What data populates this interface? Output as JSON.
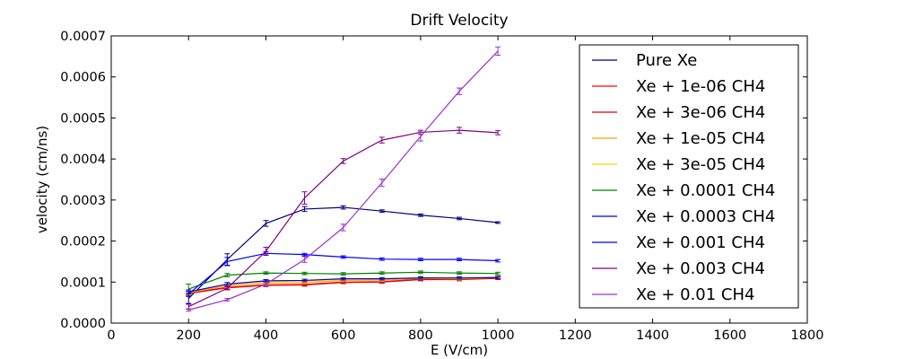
{
  "chart_data": {
    "type": "line",
    "title": "Drift Velocity",
    "xlabel": "E (V/cm)",
    "ylabel": "velocity (cm/ns)",
    "xlim": [
      0,
      1800
    ],
    "ylim": [
      0,
      0.0007
    ],
    "xticks": [
      0,
      200,
      400,
      600,
      800,
      1000,
      1200,
      1400,
      1600,
      1800
    ],
    "xtick_labels": [
      "0",
      "200",
      "400",
      "600",
      "800",
      "1000",
      "1200",
      "1400",
      "1600",
      "1800"
    ],
    "yticks": [
      0,
      0.0001,
      0.0002,
      0.0003,
      0.0004,
      0.0005,
      0.0006,
      0.0007
    ],
    "ytick_labels": [
      "0.0000",
      "0.0001",
      "0.0002",
      "0.0003",
      "0.0004",
      "0.0005",
      "0.0006",
      "0.0007"
    ],
    "grid": false,
    "legend_position": "top-right",
    "x": [
      200,
      300,
      400,
      500,
      600,
      700,
      800,
      900,
      1000
    ],
    "series": [
      {
        "name": "Pure Xe",
        "color": "#000080",
        "values": [
          6e-05,
          0.000155,
          0.000243,
          0.000278,
          0.000282,
          0.000273,
          0.000263,
          0.000255,
          0.000245
        ],
        "errors": [
          1.2e-05,
          1.4e-05,
          7e-06,
          6e-06,
          4e-06,
          3e-06,
          3e-06,
          3e-06,
          2e-06
        ]
      },
      {
        "name": "Xe + 1e-06 CH4",
        "color": "#ff0000",
        "values": [
          7.3e-05,
          8.7e-05,
          9.3e-05,
          9.4e-05,
          0.0001,
          0.000101,
          0.000107,
          0.000107,
          0.00011
        ],
        "errors": [
          5e-06,
          4e-06,
          3e-06,
          3e-06,
          3e-06,
          3e-06,
          3e-06,
          3e-06,
          3e-06
        ]
      },
      {
        "name": "Xe + 3e-06 CH4",
        "color": "#dd0000",
        "values": [
          7.2e-05,
          8.6e-05,
          9.2e-05,
          9.3e-05,
          9.9e-05,
          0.0001,
          0.000106,
          0.000106,
          0.000109
        ],
        "errors": [
          5e-06,
          4e-06,
          3e-06,
          3e-06,
          3e-06,
          3e-06,
          3e-06,
          3e-06,
          3e-06
        ]
      },
      {
        "name": "Xe + 1e-05 CH4",
        "color": "#ffa500",
        "values": [
          7.4e-05,
          9.1e-05,
          9.7e-05,
          9.9e-05,
          0.000104,
          0.000105,
          0.000109,
          0.000108,
          0.000111
        ],
        "errors": [
          5e-06,
          4e-06,
          3e-06,
          3e-06,
          3e-06,
          3e-06,
          3e-06,
          3e-06,
          3e-06
        ]
      },
      {
        "name": "Xe + 3e-05 CH4",
        "color": "#ffd700",
        "values": [
          7.5e-05,
          9.5e-05,
          0.000101,
          0.000103,
          0.000107,
          0.000107,
          0.000111,
          0.00011,
          0.000112
        ],
        "errors": [
          5e-06,
          4e-06,
          3e-06,
          3e-06,
          3e-06,
          3e-06,
          3e-06,
          3e-06,
          3e-06
        ]
      },
      {
        "name": "Xe + 0.0001 CH4",
        "color": "#008000",
        "values": [
          8.3e-05,
          0.000117,
          0.000122,
          0.000121,
          0.00012,
          0.000122,
          0.000124,
          0.000122,
          0.000121
        ],
        "errors": [
          1.2e-05,
          4e-06,
          3e-06,
          3e-06,
          3e-06,
          3e-06,
          3e-06,
          3e-06,
          3e-06
        ]
      },
      {
        "name": "Xe + 0.0003 CH4",
        "color": "#0000cd",
        "values": [
          7.6e-05,
          9.5e-05,
          0.000103,
          0.000104,
          0.000108,
          0.000108,
          0.00011,
          0.00011,
          0.000111
        ],
        "errors": [
          5e-06,
          4e-06,
          3e-06,
          3e-06,
          3e-06,
          3e-06,
          3e-06,
          3e-06,
          3e-06
        ]
      },
      {
        "name": "Xe + 0.001 CH4",
        "color": "#0000ff",
        "values": [
          7.1e-05,
          0.00015,
          0.00017,
          0.000167,
          0.000161,
          0.000156,
          0.000155,
          0.000155,
          0.000152
        ],
        "errors": [
          6e-06,
          1e-05,
          4e-06,
          3e-06,
          3e-06,
          3e-06,
          3e-06,
          3e-06,
          3e-06
        ]
      },
      {
        "name": "Xe + 0.003 CH4",
        "color": "#800080",
        "values": [
          4e-05,
          8.5e-05,
          0.000175,
          0.000305,
          0.000395,
          0.000446,
          0.000465,
          0.00047,
          0.000464
        ],
        "errors": [
          6e-06,
          4e-06,
          1e-05,
          1.5e-05,
          6e-06,
          7e-06,
          5e-06,
          7e-06,
          5e-06
        ]
      },
      {
        "name": "Xe + 0.01 CH4",
        "color": "#9932cc",
        "values": [
          3.2e-05,
          5.7e-05,
          9.5e-05,
          0.000155,
          0.000233,
          0.000342,
          0.000455,
          0.000565,
          0.000663
        ],
        "errors": [
          3e-06,
          3e-06,
          4e-06,
          7e-06,
          8e-06,
          9e-06,
          1.1e-05,
          8e-06,
          1e-05
        ]
      }
    ]
  }
}
